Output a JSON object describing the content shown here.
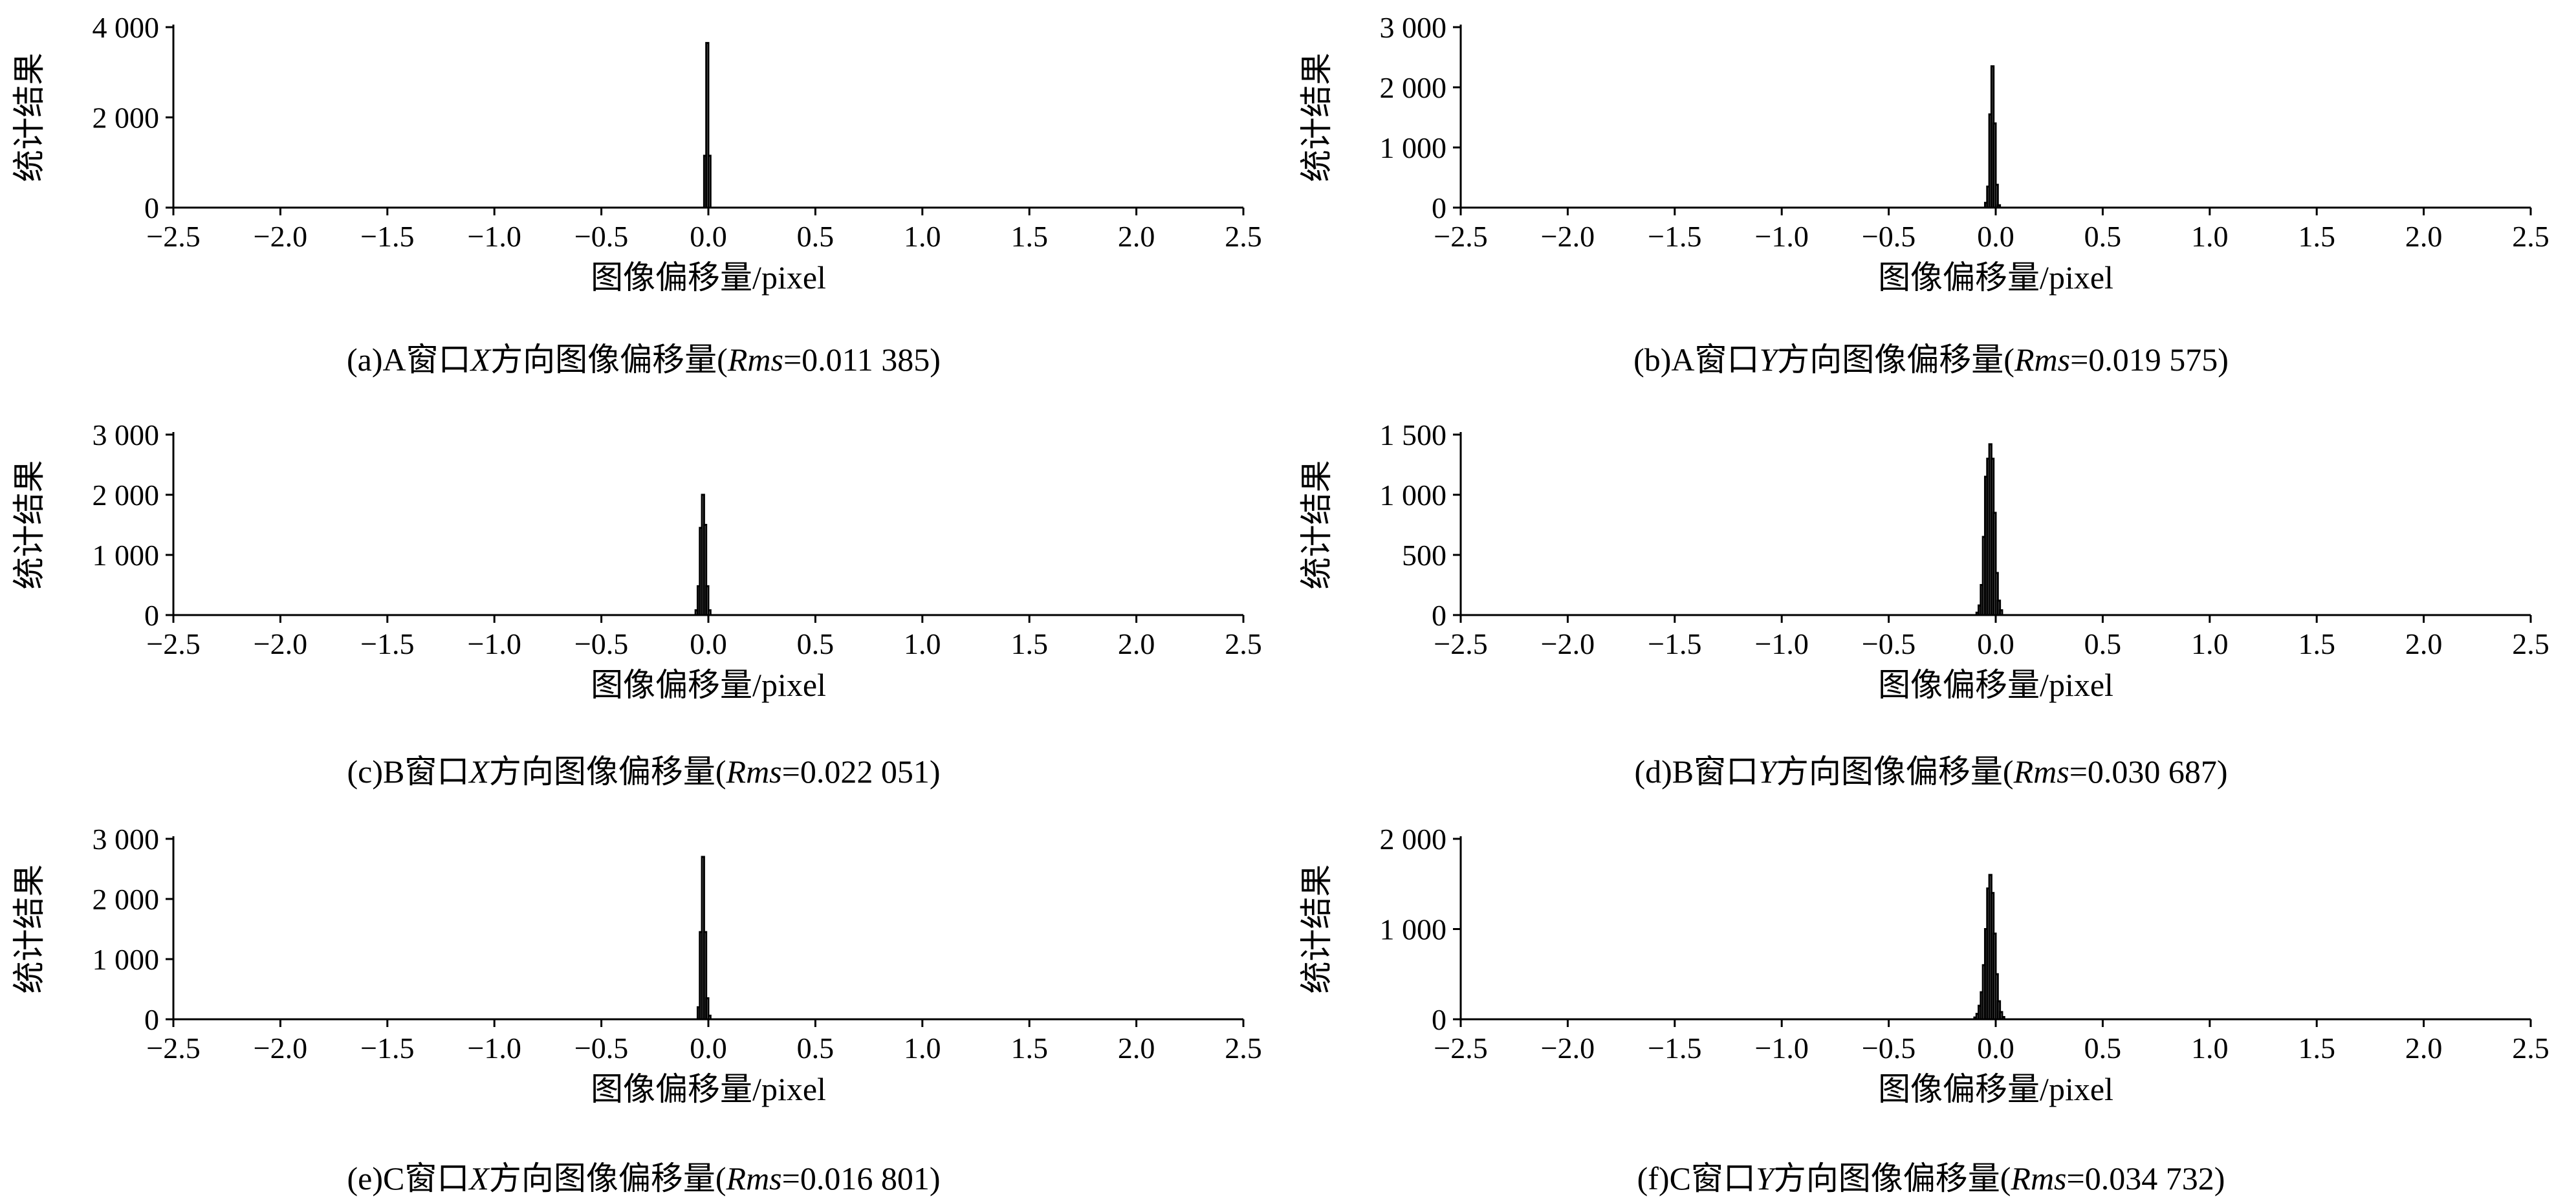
{
  "chart_data": [
    {
      "type": "bar",
      "panel_label": "(a)",
      "caption_prefix": "(a)A窗口",
      "axis_var": "X",
      "caption_middle": "方向图像偏移量(",
      "rms_label": "Rms",
      "rms_value": "=0.011 385)",
      "xlabel": "图像偏移量/pixel",
      "ylabel": "统计结果",
      "xlim": [
        -2.5,
        2.5
      ],
      "ylim": [
        0,
        4000
      ],
      "x_ticks": [
        "−2.5",
        "−2.0",
        "−1.5",
        "−1.0",
        "−0.5",
        "0.0",
        "0.5",
        "1.0",
        "1.5",
        "2.0",
        "2.5"
      ],
      "y_ticks": [
        {
          "v": 0,
          "label": "0"
        },
        {
          "v": 2000,
          "label": "2 000"
        },
        {
          "v": 4000,
          "label": "4 000"
        }
      ],
      "bin_width": 0.01,
      "bins": [
        {
          "x": -0.015,
          "y": 1150
        },
        {
          "x": -0.005,
          "y": 3650
        },
        {
          "x": 0.005,
          "y": 1150
        }
      ]
    },
    {
      "type": "bar",
      "panel_label": "(b)",
      "caption_prefix": "(b)A窗口",
      "axis_var": "Y",
      "caption_middle": "方向图像偏移量(",
      "rms_label": "Rms",
      "rms_value": "=0.019 575)",
      "xlabel": "图像偏移量/pixel",
      "ylabel": "统计结果",
      "xlim": [
        -2.5,
        2.5
      ],
      "ylim": [
        0,
        3000
      ],
      "x_ticks": [
        "−2.5",
        "−2.0",
        "−1.5",
        "−1.0",
        "−0.5",
        "0.0",
        "0.5",
        "1.0",
        "1.5",
        "2.0",
        "2.5"
      ],
      "y_ticks": [
        {
          "v": 0,
          "label": "0"
        },
        {
          "v": 1000,
          "label": "1 000"
        },
        {
          "v": 2000,
          "label": "2 000"
        },
        {
          "v": 3000,
          "label": "3 000"
        }
      ],
      "bin_width": 0.01,
      "bins": [
        {
          "x": -0.045,
          "y": 80
        },
        {
          "x": -0.035,
          "y": 350
        },
        {
          "x": -0.025,
          "y": 1550
        },
        {
          "x": -0.015,
          "y": 2350
        },
        {
          "x": -0.005,
          "y": 1400
        },
        {
          "x": 0.005,
          "y": 380
        },
        {
          "x": 0.015,
          "y": 40
        }
      ]
    },
    {
      "type": "bar",
      "panel_label": "(c)",
      "caption_prefix": "(c)B窗口",
      "axis_var": "X",
      "caption_middle": "方向图像偏移量(",
      "rms_label": "Rms",
      "rms_value": "=0.022 051)",
      "xlabel": "图像偏移量/pixel",
      "ylabel": "统计结果",
      "xlim": [
        -2.5,
        2.5
      ],
      "ylim": [
        0,
        3000
      ],
      "x_ticks": [
        "−2.5",
        "−2.0",
        "−1.5",
        "−1.0",
        "−0.5",
        "0.0",
        "0.5",
        "1.0",
        "1.5",
        "2.0",
        "2.5"
      ],
      "y_ticks": [
        {
          "v": 0,
          "label": "0"
        },
        {
          "v": 1000,
          "label": "1 000"
        },
        {
          "v": 2000,
          "label": "2 000"
        },
        {
          "v": 3000,
          "label": "3 000"
        }
      ],
      "bin_width": 0.01,
      "bins": [
        {
          "x": -0.055,
          "y": 80
        },
        {
          "x": -0.045,
          "y": 480
        },
        {
          "x": -0.035,
          "y": 1450
        },
        {
          "x": -0.025,
          "y": 2000
        },
        {
          "x": -0.015,
          "y": 1500
        },
        {
          "x": -0.005,
          "y": 480
        },
        {
          "x": 0.005,
          "y": 80
        }
      ]
    },
    {
      "type": "bar",
      "panel_label": "(d)",
      "caption_prefix": "(d)B窗口",
      "axis_var": "Y",
      "caption_middle": "方向图像偏移量(",
      "rms_label": "Rms",
      "rms_value": "=0.030 687)",
      "xlabel": "图像偏移量/pixel",
      "ylabel": "统计结果",
      "xlim": [
        -2.5,
        2.5
      ],
      "ylim": [
        0,
        1500
      ],
      "x_ticks": [
        "−2.5",
        "−2.0",
        "−1.5",
        "−1.0",
        "−0.5",
        "0.0",
        "0.5",
        "1.0",
        "1.5",
        "2.0",
        "2.5"
      ],
      "y_ticks": [
        {
          "v": 0,
          "label": "0"
        },
        {
          "v": 500,
          "label": "500"
        },
        {
          "v": 1000,
          "label": "1 000"
        },
        {
          "v": 1500,
          "label": "1 500"
        }
      ],
      "bin_width": 0.01,
      "bins": [
        {
          "x": -0.085,
          "y": 20
        },
        {
          "x": -0.075,
          "y": 80
        },
        {
          "x": -0.065,
          "y": 250
        },
        {
          "x": -0.055,
          "y": 650
        },
        {
          "x": -0.045,
          "y": 1150
        },
        {
          "x": -0.035,
          "y": 1300
        },
        {
          "x": -0.025,
          "y": 1420
        },
        {
          "x": -0.015,
          "y": 1300
        },
        {
          "x": -0.005,
          "y": 850
        },
        {
          "x": 0.005,
          "y": 350
        },
        {
          "x": 0.015,
          "y": 120
        },
        {
          "x": 0.025,
          "y": 40
        }
      ]
    },
    {
      "type": "bar",
      "panel_label": "(e)",
      "caption_prefix": "(e)C窗口",
      "axis_var": "X",
      "caption_middle": "方向图像偏移量(",
      "rms_label": "Rms",
      "rms_value": "=0.016 801)",
      "xlabel": "图像偏移量/pixel",
      "ylabel": "统计结果",
      "xlim": [
        -2.5,
        2.5
      ],
      "ylim": [
        0,
        3000
      ],
      "x_ticks": [
        "−2.5",
        "−2.0",
        "−1.5",
        "−1.0",
        "−0.5",
        "0.0",
        "0.5",
        "1.0",
        "1.5",
        "2.0",
        "2.5"
      ],
      "y_ticks": [
        {
          "v": 0,
          "label": "0"
        },
        {
          "v": 1000,
          "label": "1 000"
        },
        {
          "v": 2000,
          "label": "2 000"
        },
        {
          "v": 3000,
          "label": "3 000"
        }
      ],
      "bin_width": 0.01,
      "bins": [
        {
          "x": -0.045,
          "y": 200
        },
        {
          "x": -0.035,
          "y": 1450
        },
        {
          "x": -0.025,
          "y": 2700
        },
        {
          "x": -0.015,
          "y": 1450
        },
        {
          "x": -0.005,
          "y": 350
        },
        {
          "x": 0.005,
          "y": 60
        }
      ]
    },
    {
      "type": "bar",
      "panel_label": "(f)",
      "caption_prefix": "(f)C窗口",
      "axis_var": "Y",
      "caption_middle": "方向图像偏移量(",
      "rms_label": "Rms",
      "rms_value": "=0.034 732)",
      "xlabel": "图像偏移量/pixel",
      "ylabel": "统计结果",
      "xlim": [
        -2.5,
        2.5
      ],
      "ylim": [
        0,
        2000
      ],
      "x_ticks": [
        "−2.5",
        "−2.0",
        "−1.5",
        "−1.0",
        "−0.5",
        "0.0",
        "0.5",
        "1.0",
        "1.5",
        "2.0",
        "2.5"
      ],
      "y_ticks": [
        {
          "v": 0,
          "label": "0"
        },
        {
          "v": 1000,
          "label": "1 000"
        },
        {
          "v": 2000,
          "label": "2 000"
        }
      ],
      "bin_width": 0.01,
      "bins": [
        {
          "x": -0.095,
          "y": 20
        },
        {
          "x": -0.085,
          "y": 60
        },
        {
          "x": -0.075,
          "y": 150
        },
        {
          "x": -0.065,
          "y": 300
        },
        {
          "x": -0.055,
          "y": 600
        },
        {
          "x": -0.045,
          "y": 1000
        },
        {
          "x": -0.035,
          "y": 1450
        },
        {
          "x": -0.025,
          "y": 1600
        },
        {
          "x": -0.015,
          "y": 1400
        },
        {
          "x": -0.005,
          "y": 950
        },
        {
          "x": 0.005,
          "y": 500
        },
        {
          "x": 0.015,
          "y": 200
        },
        {
          "x": 0.025,
          "y": 80
        },
        {
          "x": 0.035,
          "y": 25
        }
      ]
    }
  ]
}
